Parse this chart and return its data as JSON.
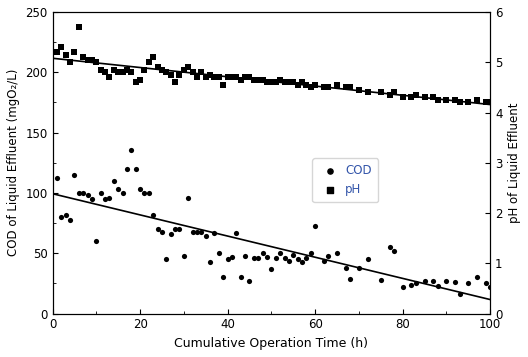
{
  "cod_x": [
    1,
    2,
    3,
    4,
    5,
    6,
    7,
    8,
    9,
    10,
    11,
    12,
    13,
    14,
    15,
    16,
    17,
    18,
    19,
    20,
    21,
    22,
    23,
    24,
    25,
    26,
    27,
    28,
    29,
    30,
    31,
    32,
    33,
    34,
    35,
    36,
    37,
    38,
    39,
    40,
    41,
    42,
    43,
    44,
    45,
    46,
    47,
    48,
    49,
    50,
    51,
    52,
    53,
    54,
    55,
    56,
    57,
    58,
    59,
    60,
    62,
    63,
    65,
    67,
    68,
    70,
    72,
    75,
    77,
    78,
    80,
    82,
    83,
    85,
    87,
    88,
    90,
    92,
    93,
    95,
    97,
    99,
    100
  ],
  "cod_y": [
    112,
    80,
    82,
    78,
    115,
    100,
    100,
    98,
    95,
    60,
    100,
    95,
    96,
    110,
    103,
    100,
    120,
    136,
    120,
    103,
    100,
    100,
    82,
    70,
    68,
    45,
    66,
    70,
    70,
    48,
    96,
    68,
    68,
    68,
    64,
    43,
    67,
    50,
    30,
    45,
    47,
    67,
    30,
    48,
    27,
    46,
    46,
    50,
    47,
    37,
    46,
    50,
    46,
    44,
    49,
    45,
    43,
    46,
    50,
    73,
    44,
    48,
    50,
    38,
    29,
    38,
    45,
    28,
    55,
    52,
    22,
    24,
    25,
    27,
    27,
    23,
    27,
    26,
    16,
    25,
    30,
    25,
    22
  ],
  "ph_x": [
    1,
    2,
    3,
    4,
    5,
    6,
    7,
    8,
    9,
    10,
    11,
    12,
    13,
    14,
    15,
    16,
    17,
    18,
    19,
    20,
    21,
    22,
    23,
    24,
    25,
    26,
    27,
    28,
    29,
    30,
    31,
    32,
    33,
    34,
    35,
    36,
    37,
    38,
    39,
    40,
    41,
    42,
    43,
    44,
    45,
    46,
    47,
    48,
    49,
    50,
    51,
    52,
    53,
    54,
    55,
    56,
    57,
    58,
    59,
    60,
    62,
    63,
    65,
    67,
    68,
    70,
    72,
    75,
    77,
    78,
    80,
    82,
    83,
    85,
    87,
    88,
    90,
    92,
    93,
    95,
    97,
    99,
    100
  ],
  "ph_y": [
    5.2,
    5.3,
    5.15,
    5.0,
    5.2,
    5.7,
    5.1,
    5.05,
    5.05,
    5.0,
    4.85,
    4.8,
    4.7,
    4.85,
    4.8,
    4.8,
    4.85,
    4.8,
    4.6,
    4.65,
    4.85,
    5.0,
    5.1,
    4.9,
    4.85,
    4.8,
    4.75,
    4.6,
    4.75,
    4.85,
    4.9,
    4.8,
    4.7,
    4.8,
    4.7,
    4.75,
    4.7,
    4.7,
    4.55,
    4.7,
    4.7,
    4.7,
    4.65,
    4.7,
    4.7,
    4.65,
    4.65,
    4.65,
    4.6,
    4.6,
    4.6,
    4.65,
    4.6,
    4.6,
    4.6,
    4.55,
    4.6,
    4.55,
    4.5,
    4.55,
    4.5,
    4.5,
    4.55,
    4.5,
    4.5,
    4.45,
    4.4,
    4.4,
    4.35,
    4.4,
    4.3,
    4.3,
    4.35,
    4.3,
    4.3,
    4.25,
    4.25,
    4.25,
    4.2,
    4.2,
    4.25,
    4.2,
    4.2
  ],
  "xlabel": "Cumulative Operation Time (h)",
  "ylabel_left": "COD of Liquid Effluent (mgO₂/L)",
  "ylabel_right": "pH of Liquid Effluent",
  "xlim": [
    0,
    100
  ],
  "ylim_left": [
    0,
    250
  ],
  "ylim_right": [
    0,
    6
  ],
  "legend_labels": [
    "COD",
    "pH"
  ],
  "legend_text_color": "#3355aa",
  "marker_cod": "o",
  "marker_ph": "s",
  "marker_color": "#000000",
  "line_color": "#000000",
  "background_color": "#ffffff",
  "figsize": [
    5.28,
    3.57
  ],
  "dpi": 100
}
